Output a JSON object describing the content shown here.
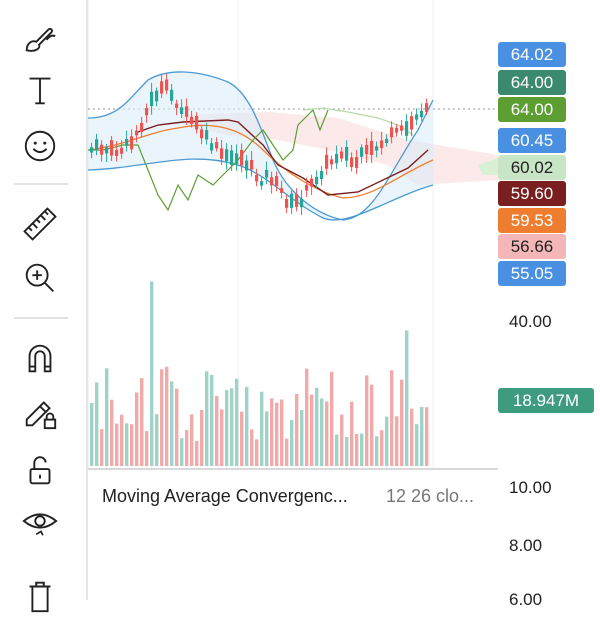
{
  "toolbar": {
    "tools": [
      {
        "name": "brush-tool",
        "icon": "brush-icon"
      },
      {
        "name": "text-tool",
        "icon": "text-icon"
      },
      {
        "name": "emoji-tool",
        "icon": "smiley-icon"
      },
      {
        "name": "measure-tool",
        "icon": "ruler-icon"
      },
      {
        "name": "zoom-tool",
        "icon": "zoom-in-icon"
      },
      {
        "name": "magnet-tool",
        "icon": "magnet-icon"
      },
      {
        "name": "lock-drawings-tool",
        "icon": "pencil-lock-icon"
      },
      {
        "name": "lock-tool",
        "icon": "lock-open-icon"
      },
      {
        "name": "hide-tool",
        "icon": "eye-icon"
      },
      {
        "name": "delete-tool",
        "icon": "trash-icon"
      }
    ]
  },
  "price_tags": [
    {
      "label": "64.02",
      "color": "#4a90e2"
    },
    {
      "label": "64.00",
      "color": "#3b8a70"
    },
    {
      "label": "64.00",
      "color": "#5d9e33"
    },
    {
      "label": "60.45",
      "color": "#4a90e2"
    },
    {
      "label": "60.02",
      "color": "#c8e6c5",
      "text_color": "#222222"
    },
    {
      "label": "59.60",
      "color": "#7a1f1f"
    },
    {
      "label": "59.53",
      "color": "#ef7d2f"
    },
    {
      "label": "56.66",
      "color": "#f4b6b6",
      "text_color": "#222222"
    },
    {
      "label": "55.05",
      "color": "#4a90e2"
    }
  ],
  "volume": {
    "axis_label": "40.00",
    "last_volume": "18.947M",
    "tag_color": "#3d9b7f"
  },
  "macd": {
    "title": "Moving Average Convergenc...",
    "params": "12 26 clo...",
    "axis_labels": [
      "10.00",
      "8.00",
      "6.00"
    ]
  },
  "colors": {
    "up": "#26a69a",
    "down": "#ef5350",
    "vol_up": "#9fd3c7",
    "vol_down": "#f2a9a9",
    "bb": "#4a9ad4",
    "cloud": "#fbe3e3"
  }
}
